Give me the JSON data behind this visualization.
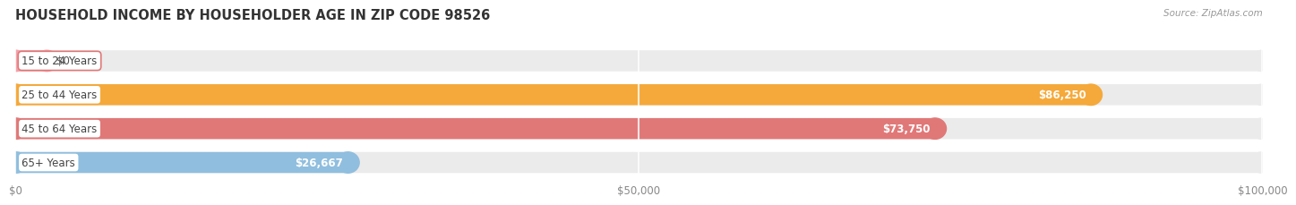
{
  "title": "HOUSEHOLD INCOME BY HOUSEHOLDER AGE IN ZIP CODE 98526",
  "source": "Source: ZipAtlas.com",
  "categories": [
    "15 to 24 Years",
    "25 to 44 Years",
    "45 to 64 Years",
    "65+ Years"
  ],
  "values": [
    0,
    86250,
    73750,
    26667
  ],
  "bar_colors": [
    "#f4a0a8",
    "#f5a93a",
    "#e07878",
    "#90bede"
  ],
  "bar_bg_color": "#ebebeb",
  "label_border_colors": [
    "#e07878",
    "#f5a93a",
    "#e07878",
    "#90bede"
  ],
  "value_labels": [
    "$0",
    "$86,250",
    "$73,750",
    "$26,667"
  ],
  "xlim": [
    0,
    100000
  ],
  "xtick_values": [
    0,
    50000,
    100000
  ],
  "xtick_labels": [
    "$0",
    "$50,000",
    "$100,000"
  ],
  "fig_bg_color": "#ffffff",
  "bar_area_bg": "#f7f7f7",
  "figsize": [
    14.06,
    2.33
  ],
  "dpi": 100
}
